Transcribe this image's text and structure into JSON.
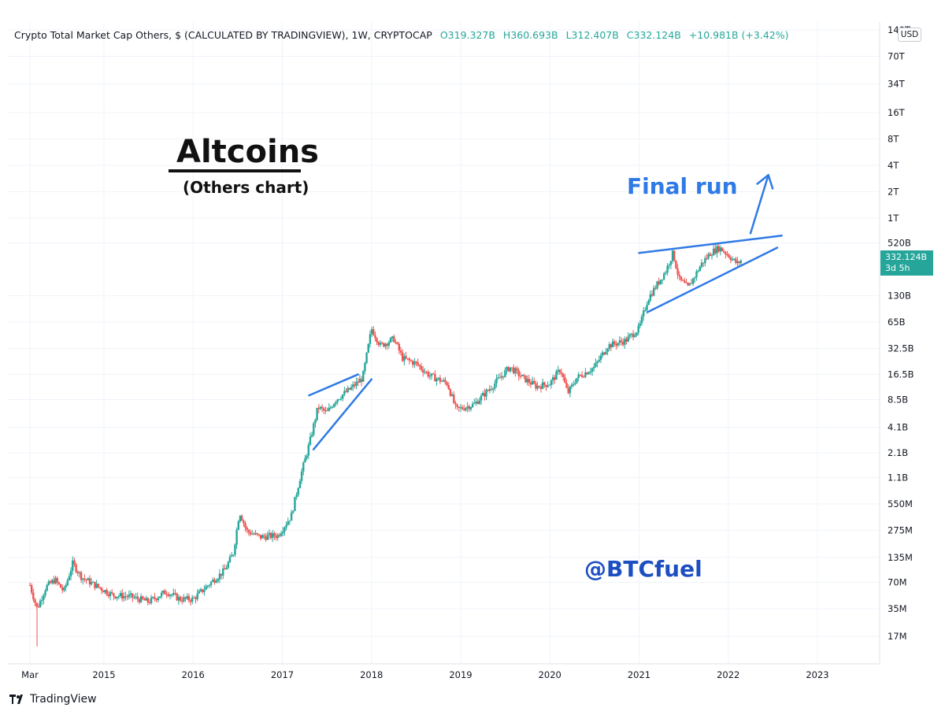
{
  "header": {
    "symbol": "Crypto Total Market Cap Others, $ (CALCULATED BY TRADINGVIEW), 1W, CRYPTOCAP",
    "open": "O319.327B",
    "high": "H360.693B",
    "low": "L312.407B",
    "close": "C332.124B",
    "change": "+10.981B (+3.42%)"
  },
  "currency_label": "USD",
  "price_tag": {
    "price": "332.124B",
    "countdown": "3d 5h"
  },
  "annotations": {
    "title": "Altcoins",
    "subtitle": "(Others chart)",
    "final_run": "Final run",
    "handle": "@BTCfuel"
  },
  "branding": {
    "name": "TradingView"
  },
  "colors": {
    "up": "#26a69a",
    "down": "#ef5350",
    "annotation": "#2f7ae5",
    "grid": "#f0f3fa"
  },
  "chart_data": {
    "type": "candlestick",
    "scale": "log",
    "interval": "1W",
    "y_ticks": [
      {
        "label": "17M",
        "value": 17000000.0
      },
      {
        "label": "35M",
        "value": 35000000.0
      },
      {
        "label": "70M",
        "value": 70000000.0
      },
      {
        "label": "135M",
        "value": 135000000.0
      },
      {
        "label": "275M",
        "value": 275000000.0
      },
      {
        "label": "550M",
        "value": 550000000.0
      },
      {
        "label": "1.1B",
        "value": 1100000000.0
      },
      {
        "label": "2.1B",
        "value": 2100000000.0
      },
      {
        "label": "4.1B",
        "value": 4100000000.0
      },
      {
        "label": "8.5B",
        "value": 8500000000.0
      },
      {
        "label": "16.5B",
        "value": 16500000000.0
      },
      {
        "label": "32.5B",
        "value": 32500000000.0
      },
      {
        "label": "65B",
        "value": 65000000000.0
      },
      {
        "label": "130B",
        "value": 130000000000.0
      },
      {
        "label": "520B",
        "value": 520000000000.0
      },
      {
        "label": "1T",
        "value": 1000000000000.0
      },
      {
        "label": "2T",
        "value": 2000000000000.0
      },
      {
        "label": "4T",
        "value": 4000000000000.0
      },
      {
        "label": "8T",
        "value": 8000000000000.0
      },
      {
        "label": "16T",
        "value": 16000000000000.0
      },
      {
        "label": "34T",
        "value": 34000000000000.0
      },
      {
        "label": "70T",
        "value": 70000000000000.0
      },
      {
        "label": "140T",
        "value": 140000000000000.0
      }
    ],
    "x_ticks": [
      {
        "label": "Mar",
        "t": 2014.17
      },
      {
        "label": "2015",
        "t": 2015
      },
      {
        "label": "2016",
        "t": 2016
      },
      {
        "label": "2017",
        "t": 2017
      },
      {
        "label": "2018",
        "t": 2018
      },
      {
        "label": "2019",
        "t": 2019
      },
      {
        "label": "2020",
        "t": 2020
      },
      {
        "label": "2021",
        "t": 2021
      },
      {
        "label": "2022",
        "t": 2022
      },
      {
        "label": "2023",
        "t": 2023
      }
    ],
    "anchors": [
      [
        2014.17,
        65000000.0
      ],
      [
        2014.25,
        35000000.0
      ],
      [
        2014.35,
        62000000.0
      ],
      [
        2014.45,
        75000000.0
      ],
      [
        2014.55,
        55000000.0
      ],
      [
        2014.65,
        115000000.0
      ],
      [
        2014.75,
        80000000.0
      ],
      [
        2014.9,
        65000000.0
      ],
      [
        2015.1,
        50000000.0
      ],
      [
        2015.3,
        48000000.0
      ],
      [
        2015.5,
        42000000.0
      ],
      [
        2015.7,
        55000000.0
      ],
      [
        2015.85,
        45000000.0
      ],
      [
        2016.0,
        45000000.0
      ],
      [
        2016.2,
        70000000.0
      ],
      [
        2016.35,
        95000000.0
      ],
      [
        2016.45,
        150000000.0
      ],
      [
        2016.52,
        450000000.0
      ],
      [
        2016.6,
        270000000.0
      ],
      [
        2016.75,
        230000000.0
      ],
      [
        2016.95,
        240000000.0
      ],
      [
        2017.1,
        400000000.0
      ],
      [
        2017.2,
        1100000000.0
      ],
      [
        2017.3,
        2600000000.0
      ],
      [
        2017.4,
        7000000000.0
      ],
      [
        2017.5,
        6000000000.0
      ],
      [
        2017.6,
        8500000000.0
      ],
      [
        2017.75,
        11000000000.0
      ],
      [
        2017.9,
        15000000000.0
      ],
      [
        2018.0,
        55000000000.0
      ],
      [
        2018.1,
        35000000000.0
      ],
      [
        2018.25,
        42000000000.0
      ],
      [
        2018.35,
        25000000000.0
      ],
      [
        2018.5,
        22000000000.0
      ],
      [
        2018.65,
        16000000000.0
      ],
      [
        2018.85,
        13000000000.0
      ],
      [
        2018.95,
        6500000000.0
      ],
      [
        2019.15,
        7500000000.0
      ],
      [
        2019.35,
        12000000000.0
      ],
      [
        2019.55,
        20000000000.0
      ],
      [
        2019.7,
        15000000000.0
      ],
      [
        2019.85,
        12000000000.0
      ],
      [
        2020.0,
        13000000000.0
      ],
      [
        2020.12,
        19000000000.0
      ],
      [
        2020.2,
        10000000000.0
      ],
      [
        2020.3,
        15000000000.0
      ],
      [
        2020.5,
        20000000000.0
      ],
      [
        2020.65,
        35000000000.0
      ],
      [
        2020.85,
        40000000000.0
      ],
      [
        2021.0,
        55000000000.0
      ],
      [
        2021.1,
        120000000000.0
      ],
      [
        2021.3,
        250000000000.0
      ],
      [
        2021.38,
        400000000000.0
      ],
      [
        2021.45,
        200000000000.0
      ],
      [
        2021.55,
        160000000000.0
      ],
      [
        2021.7,
        300000000000.0
      ],
      [
        2021.8,
        400000000000.0
      ],
      [
        2021.9,
        460000000000.0
      ],
      [
        2022.0,
        380000000000.0
      ],
      [
        2022.1,
        300000000000.0
      ],
      [
        2022.15,
        332124000000.0
      ]
    ],
    "trendlines": [
      {
        "name": "upper-2017",
        "from": [
          2017.3,
          9500000000.0
        ],
        "to": [
          2017.85,
          16500000000.0
        ]
      },
      {
        "name": "lower-2017",
        "from": [
          2017.35,
          2300000000.0
        ],
        "to": [
          2018.0,
          14500000000.0
        ]
      },
      {
        "name": "upper-2021",
        "from": [
          2021.0,
          400000000000.0
        ],
        "to": [
          2022.6,
          630000000000.0
        ]
      },
      {
        "name": "lower-2021",
        "from": [
          2021.1,
          85000000000.0
        ],
        "to": [
          2022.55,
          460000000000.0
        ]
      }
    ],
    "arrow": {
      "from": [
        2022.25,
        670000000000.0
      ],
      "to": [
        2022.45,
        3100000000000.0
      ]
    }
  }
}
